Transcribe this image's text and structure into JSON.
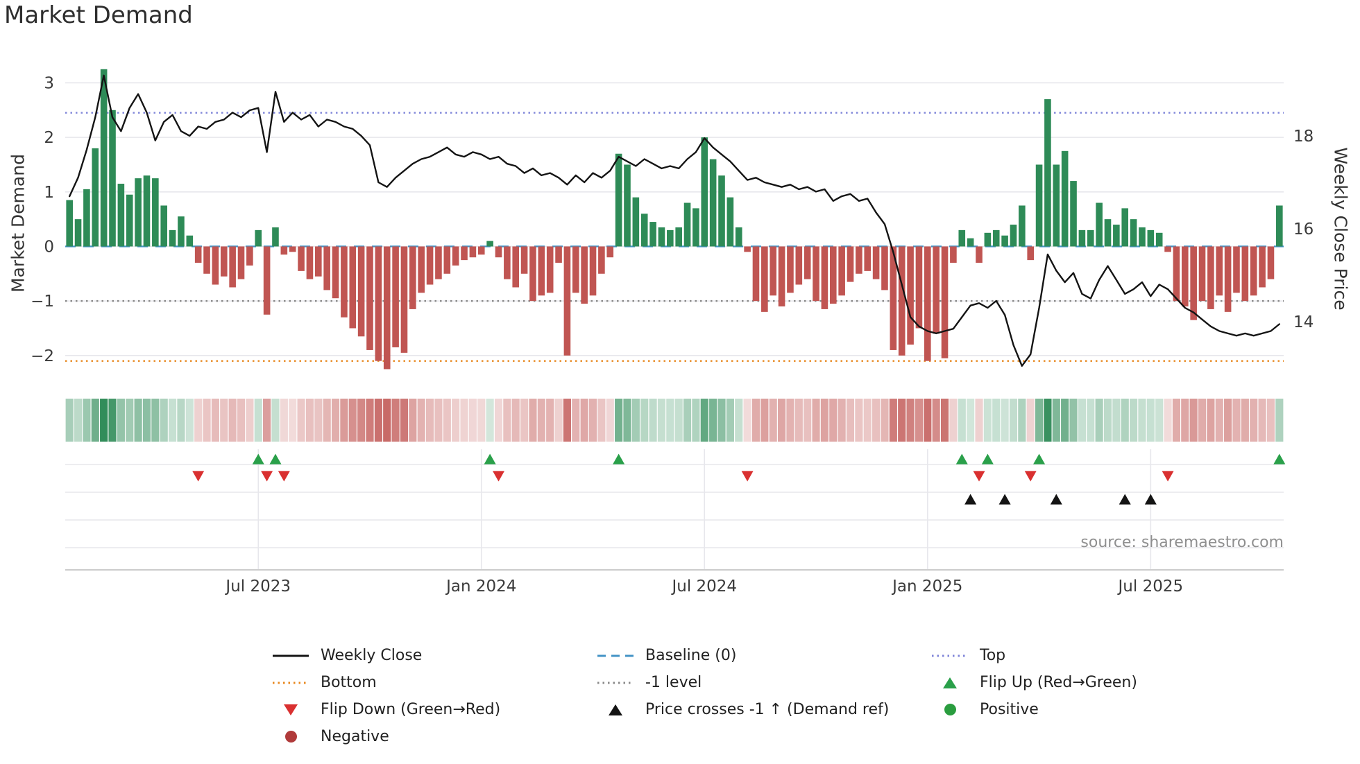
{
  "title": "Market Demand",
  "source": "source: sharemaestro.com",
  "axes": {
    "left_label": "Market Demand",
    "right_label": "Weekly Close Price"
  },
  "colors": {
    "bar_positive": "#2e8b57",
    "bar_negative": "#c05552",
    "price_line": "#141414",
    "baseline": "#4393c6",
    "top_line": "#8086d9",
    "minus_one_line": "#8a8a8a",
    "bottom_line": "#e8881f",
    "flip_up": "#2aa04a",
    "flip_down": "#d93030",
    "price_cross": "#141414",
    "positive_dot": "#2a9d3f",
    "negative_dot": "#b03a3a",
    "grid": "#e7e7ec",
    "axis_line": "#cccccc",
    "tick_text": "#3a3a3a"
  },
  "chart_data": {
    "type": "bar+line",
    "x_unit": "week",
    "x_tick_labels": [
      "Jul 2023",
      "Jan 2024",
      "Jul 2024",
      "Jan 2025",
      "Jul 2025"
    ],
    "x_tick_weeks": [
      22,
      48,
      74,
      100,
      126
    ],
    "left_axis": {
      "ticks": [
        3,
        2,
        1,
        0,
        -1,
        -2
      ],
      "tick_labels": [
        "3",
        "2",
        "1",
        "0",
        "−1",
        "−2"
      ],
      "range": [
        -2.6,
        3.4
      ]
    },
    "right_axis": {
      "ticks": [
        18,
        16,
        14
      ],
      "tick_labels": [
        "18",
        "16",
        "14"
      ],
      "range": [
        12.57,
        19.61
      ]
    },
    "reference_lines": [
      {
        "name": "Top",
        "value": 2.45,
        "style": "dotted",
        "color": "#8086d9"
      },
      {
        "name": "Baseline (0)",
        "value": 0,
        "style": "dashed",
        "color": "#4393c6"
      },
      {
        "name": "-1 level",
        "value": -1,
        "style": "dotted",
        "color": "#8a8a8a"
      },
      {
        "name": "Bottom",
        "value": -2.1,
        "style": "dotted",
        "color": "#e8881f"
      }
    ],
    "series": [
      {
        "name": "Market Demand",
        "type": "bar",
        "axis": "left",
        "values": [
          0.85,
          0.5,
          1.05,
          1.8,
          3.25,
          2.5,
          1.15,
          0.95,
          1.25,
          1.3,
          1.25,
          0.75,
          0.3,
          0.55,
          0.2,
          -0.3,
          -0.5,
          -0.7,
          -0.55,
          -0.75,
          -0.6,
          -0.35,
          0.3,
          -1.25,
          0.35,
          -0.15,
          -0.1,
          -0.45,
          -0.6,
          -0.55,
          -0.8,
          -0.95,
          -1.3,
          -1.5,
          -1.65,
          -1.9,
          -2.1,
          -2.25,
          -1.85,
          -1.95,
          -1.15,
          -0.85,
          -0.7,
          -0.6,
          -0.5,
          -0.35,
          -0.25,
          -0.2,
          -0.15,
          0.1,
          -0.2,
          -0.6,
          -0.75,
          -0.5,
          -1.0,
          -0.9,
          -0.85,
          -0.3,
          -2.0,
          -0.85,
          -1.05,
          -0.9,
          -0.5,
          -0.2,
          1.7,
          1.5,
          0.9,
          0.6,
          0.45,
          0.35,
          0.3,
          0.35,
          0.8,
          0.7,
          2.0,
          1.6,
          1.3,
          0.9,
          0.35,
          -0.1,
          -1.0,
          -1.2,
          -0.9,
          -1.1,
          -0.85,
          -0.7,
          -0.6,
          -1.0,
          -1.15,
          -1.05,
          -0.9,
          -0.65,
          -0.5,
          -0.45,
          -0.6,
          -0.8,
          -1.9,
          -2.0,
          -1.8,
          -1.5,
          -2.1,
          -1.6,
          -2.05,
          -0.3,
          0.3,
          0.15,
          -0.3,
          0.25,
          0.3,
          0.2,
          0.4,
          0.75,
          -0.25,
          1.5,
          2.7,
          1.5,
          1.75,
          1.2,
          0.3,
          0.3,
          0.8,
          0.5,
          0.4,
          0.7,
          0.5,
          0.35,
          0.3,
          0.25,
          -0.1,
          -1.0,
          -1.1,
          -1.35,
          -1.0,
          -1.15,
          -0.9,
          -1.2,
          -0.85,
          -1.0,
          -0.9,
          -0.75,
          -0.6,
          0.75
        ]
      },
      {
        "name": "Weekly Close",
        "type": "line",
        "axis": "right",
        "values": [
          16.7,
          17.1,
          17.7,
          18.4,
          19.3,
          18.4,
          18.1,
          18.6,
          18.9,
          18.5,
          17.9,
          18.3,
          18.45,
          18.1,
          18.0,
          18.2,
          18.15,
          18.3,
          18.35,
          18.5,
          18.4,
          18.55,
          18.6,
          17.65,
          18.95,
          18.3,
          18.5,
          18.35,
          18.45,
          18.2,
          18.35,
          18.3,
          18.2,
          18.15,
          18.0,
          17.8,
          17.0,
          16.9,
          17.1,
          17.25,
          17.4,
          17.5,
          17.55,
          17.65,
          17.75,
          17.6,
          17.55,
          17.65,
          17.6,
          17.5,
          17.55,
          17.4,
          17.35,
          17.2,
          17.3,
          17.15,
          17.2,
          17.1,
          16.95,
          17.15,
          17.0,
          17.2,
          17.1,
          17.25,
          17.55,
          17.45,
          17.35,
          17.5,
          17.4,
          17.3,
          17.35,
          17.3,
          17.5,
          17.65,
          17.95,
          17.75,
          17.6,
          17.45,
          17.25,
          17.05,
          17.1,
          17.0,
          16.95,
          16.9,
          16.95,
          16.85,
          16.9,
          16.8,
          16.85,
          16.6,
          16.7,
          16.75,
          16.6,
          16.65,
          16.35,
          16.1,
          15.5,
          14.8,
          14.1,
          13.9,
          13.8,
          13.75,
          13.8,
          13.85,
          14.1,
          14.35,
          14.4,
          14.3,
          14.45,
          14.15,
          13.5,
          13.05,
          13.3,
          14.3,
          15.45,
          15.1,
          14.85,
          15.05,
          14.6,
          14.5,
          14.9,
          15.2,
          14.9,
          14.6,
          14.7,
          14.85,
          14.55,
          14.8,
          14.7,
          14.5,
          14.3,
          14.2,
          14.05,
          13.9,
          13.8,
          13.75,
          13.7,
          13.75,
          13.7,
          13.75,
          13.8,
          13.95
        ]
      }
    ],
    "heatmap": {
      "source_series": "Market Demand"
    },
    "markers": {
      "flip_up": {
        "label": "Flip Up (Red→Green)",
        "weeks": [
          22,
          24,
          49,
          64,
          104,
          107,
          113,
          141
        ]
      },
      "flip_down": {
        "label": "Flip Down (Green→Red)",
        "weeks": [
          15,
          23,
          25,
          50,
          79,
          106,
          112,
          128
        ]
      },
      "price_cross": {
        "label": "Price crosses -1 ↑ (Demand ref)",
        "weeks": [
          105,
          109,
          115,
          123,
          126
        ]
      }
    }
  },
  "legend": {
    "items": [
      {
        "label": "Weekly Close",
        "swatch": "line",
        "color": "#141414"
      },
      {
        "label": "Baseline (0)",
        "swatch": "dashed",
        "color": "#4393c6"
      },
      {
        "label": "Top",
        "swatch": "dotted",
        "color": "#8086d9"
      },
      {
        "label": "Bottom",
        "swatch": "dotted",
        "color": "#e8881f"
      },
      {
        "label": "-1 level",
        "swatch": "dotted",
        "color": "#8a8a8a"
      },
      {
        "label": "Flip Up (Red→Green)",
        "swatch": "tri-up",
        "color": "#2aa04a"
      },
      {
        "label": "Flip Down (Green→Red)",
        "swatch": "tri-down",
        "color": "#d93030"
      },
      {
        "label": "Price crosses -1 ↑ (Demand ref)",
        "swatch": "tri-up",
        "color": "#141414"
      },
      {
        "label": "Positive",
        "swatch": "circle",
        "color": "#2a9d3f"
      },
      {
        "label": "Negative",
        "swatch": "circle",
        "color": "#b03a3a"
      }
    ]
  }
}
